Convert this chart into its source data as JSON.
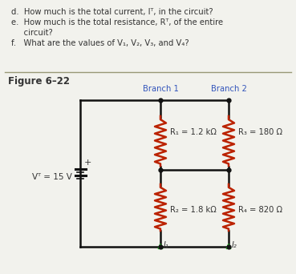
{
  "title_text": "Figure 6–22",
  "branch1_label": "Branch 1",
  "branch2_label": "Branch 2",
  "R1_label": "R₁ = 1.2 kΩ",
  "R2_label": "R₂ = 1.8 kΩ",
  "R3_label": "R₃ = 180 Ω",
  "R4_label": "R₄ = 820 Ω",
  "VT_label": "Vᵀ = 15 V",
  "I1_label": "I₁",
  "I2_label": "I₂",
  "bg_color": "#f2f2ed",
  "text_color": "#333333",
  "wire_color": "#111111",
  "resistor_color": "#bb2200",
  "branch_label_color": "#3355bb",
  "arrow_color": "#22aa22",
  "divider_color": "#999977",
  "q_lines": [
    "d.  How much is the total current, Iᵀ, in the circuit?",
    "e.  How much is the total resistance, Rᵀ, of the entire",
    "     circuit?",
    "f.   What are the values of V₁, V₂, V₃, and V₄?"
  ]
}
